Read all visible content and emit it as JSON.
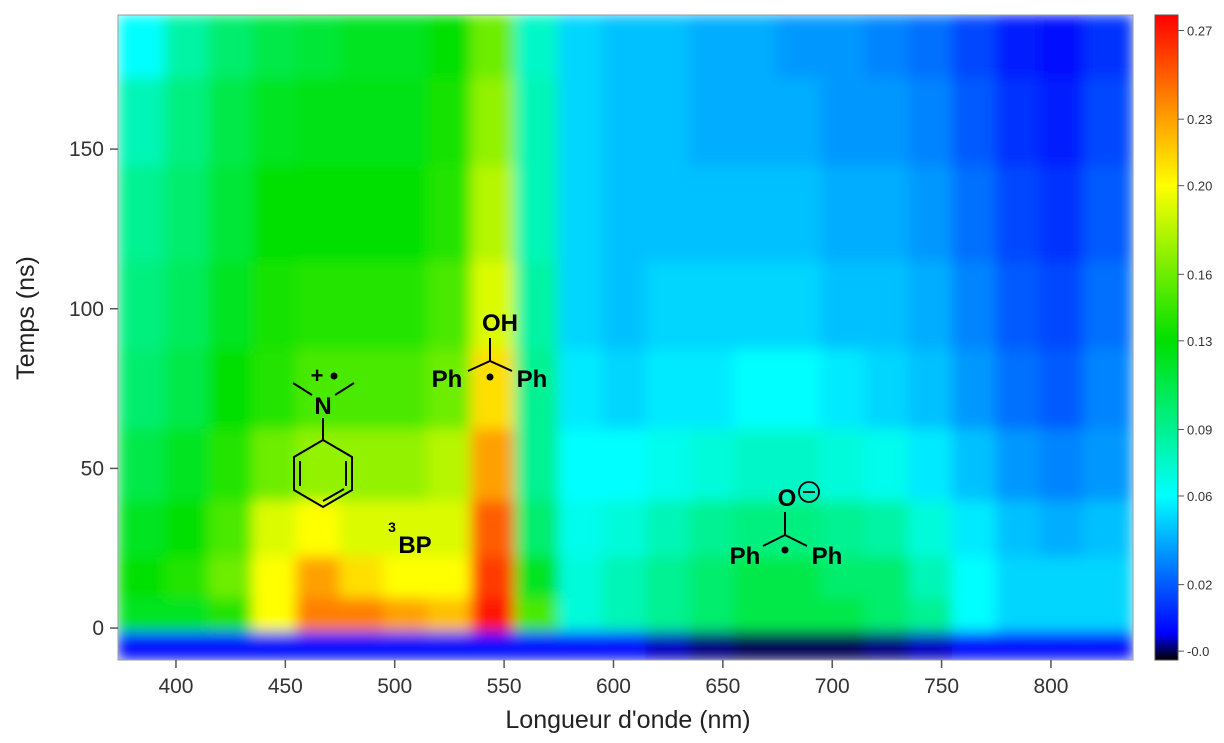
{
  "chart_data": {
    "type": "heatmap",
    "xlabel": "Longueur d'onde (nm)",
    "ylabel": "Temps (ns)",
    "x": [
      385,
      405,
      425,
      445,
      465,
      485,
      505,
      525,
      545,
      565,
      585,
      605,
      625,
      645,
      665,
      685,
      705,
      725,
      745,
      765,
      785,
      805,
      825
    ],
    "y": [
      -6,
      4,
      15,
      30,
      50,
      75,
      100,
      130,
      160,
      185
    ],
    "z": [
      [
        0.0,
        0.0,
        0.0,
        0.0,
        0.0,
        0.0,
        0.0,
        0.0,
        0.0,
        0.0,
        0.0,
        0.0,
        -0.005,
        -0.008,
        -0.01,
        -0.01,
        -0.01,
        -0.008,
        -0.005,
        0.0,
        0.0,
        0.0,
        0.0
      ],
      [
        0.12,
        0.12,
        0.14,
        0.2,
        0.24,
        0.24,
        0.23,
        0.22,
        0.27,
        0.15,
        0.07,
        0.08,
        0.09,
        0.1,
        0.11,
        0.11,
        0.11,
        0.1,
        0.09,
        0.06,
        0.05,
        0.05,
        0.05
      ],
      [
        0.13,
        0.14,
        0.16,
        0.2,
        0.23,
        0.21,
        0.2,
        0.2,
        0.26,
        0.12,
        0.07,
        0.08,
        0.09,
        0.1,
        0.11,
        0.11,
        0.1,
        0.1,
        0.08,
        0.06,
        0.05,
        0.05,
        0.05
      ],
      [
        0.12,
        0.13,
        0.15,
        0.19,
        0.2,
        0.19,
        0.19,
        0.19,
        0.25,
        0.1,
        0.065,
        0.07,
        0.08,
        0.09,
        0.095,
        0.095,
        0.09,
        0.085,
        0.07,
        0.055,
        0.045,
        0.04,
        0.045
      ],
      [
        0.11,
        0.12,
        0.14,
        0.16,
        0.17,
        0.17,
        0.17,
        0.18,
        0.23,
        0.09,
        0.06,
        0.06,
        0.065,
        0.07,
        0.075,
        0.075,
        0.07,
        0.065,
        0.055,
        0.045,
        0.035,
        0.03,
        0.035
      ],
      [
        0.1,
        0.11,
        0.13,
        0.14,
        0.15,
        0.15,
        0.15,
        0.16,
        0.21,
        0.09,
        0.055,
        0.05,
        0.055,
        0.055,
        0.06,
        0.06,
        0.055,
        0.05,
        0.045,
        0.035,
        0.025,
        0.02,
        0.03
      ],
      [
        0.095,
        0.105,
        0.12,
        0.135,
        0.14,
        0.14,
        0.14,
        0.15,
        0.19,
        0.085,
        0.05,
        0.045,
        0.05,
        0.05,
        0.05,
        0.05,
        0.045,
        0.045,
        0.04,
        0.03,
        0.02,
        0.015,
        0.025
      ],
      [
        0.09,
        0.1,
        0.115,
        0.13,
        0.13,
        0.13,
        0.13,
        0.14,
        0.18,
        0.08,
        0.05,
        0.045,
        0.045,
        0.045,
        0.045,
        0.045,
        0.04,
        0.04,
        0.035,
        0.025,
        0.015,
        0.01,
        0.02
      ],
      [
        0.08,
        0.095,
        0.11,
        0.12,
        0.125,
        0.125,
        0.125,
        0.135,
        0.17,
        0.08,
        0.05,
        0.045,
        0.045,
        0.04,
        0.04,
        0.04,
        0.035,
        0.035,
        0.03,
        0.02,
        0.01,
        0.005,
        0.015
      ],
      [
        0.06,
        0.085,
        0.1,
        0.11,
        0.115,
        0.12,
        0.12,
        0.13,
        0.16,
        0.075,
        0.05,
        0.045,
        0.045,
        0.04,
        0.04,
        0.035,
        0.035,
        0.03,
        0.025,
        0.015,
        0.005,
        0.0,
        0.01
      ]
    ],
    "xlim": [
      373.5,
      837.5
    ],
    "xticks": [
      400,
      450,
      500,
      550,
      600,
      650,
      700,
      750,
      800
    ],
    "ylim": [
      -10,
      192
    ],
    "yticks": [
      0,
      50,
      100,
      150
    ],
    "zlim": [
      -0.014,
      0.277
    ],
    "zticks": [
      0.27,
      0.23,
      {
        "value": 0.2,
        "label": "0.20"
      },
      0.16,
      0.13,
      0.09,
      0.06,
      0.02,
      {
        "value": -0.01,
        "label": "-0.0"
      }
    ],
    "colorscale": [
      [
        -0.014,
        "#000000"
      ],
      [
        -0.002,
        "#0000ff"
      ],
      [
        0.06,
        "#00ffff"
      ],
      [
        0.13,
        "#00e000"
      ],
      [
        0.2,
        "#ffff00"
      ],
      [
        0.235,
        "#ff9000"
      ],
      [
        0.277,
        "#ff0000"
      ]
    ],
    "annotations": [
      "+",
      "N",
      "OH",
      "Ph",
      "Ph",
      "3",
      "BP",
      "O",
      "Ph",
      "Ph"
    ]
  }
}
